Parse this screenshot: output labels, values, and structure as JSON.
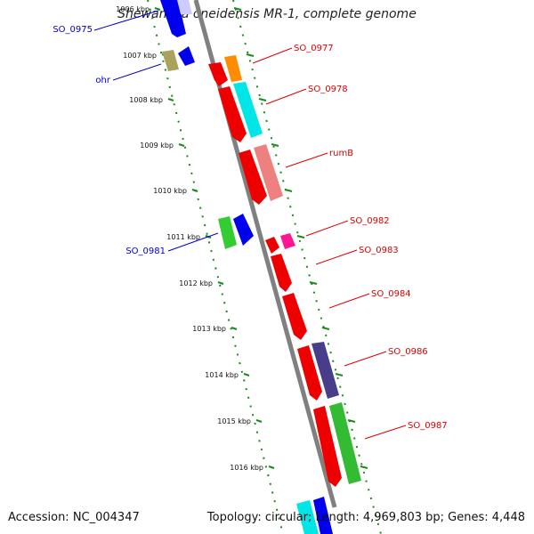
{
  "title": "Shewanella oneidensis MR-1, complete genome",
  "footer": {
    "accession": "Accession: NC_004347",
    "summary": "Topology: circular; Length: 4,969,803 bp; Genes: 4,448"
  },
  "ticks": [
    "1006 kbp",
    "1007 kbp",
    "1008 kbp",
    "1009 kbp",
    "1010 kbp",
    "1011 kbp",
    "1012 kbp",
    "1013 kbp",
    "1014 kbp",
    "1015 kbp",
    "1016 kbp"
  ],
  "gene_labels": [
    {
      "text": "SO_0975",
      "color": "#0000cc"
    },
    {
      "text": "ohr",
      "color": "#0000cc"
    },
    {
      "text": "SO_0977",
      "color": "#dd0000"
    },
    {
      "text": "SO_0978",
      "color": "#dd0000"
    },
    {
      "text": "rumB",
      "color": "#dd0000"
    },
    {
      "text": "SO_0981",
      "color": "#0000cc"
    },
    {
      "text": "SO_0982",
      "color": "#dd0000"
    },
    {
      "text": "SO_0983",
      "color": "#dd0000"
    },
    {
      "text": "SO_0984",
      "color": "#dd0000"
    },
    {
      "text": "SO_0986",
      "color": "#dd0000"
    },
    {
      "text": "SO_0987",
      "color": "#dd0000"
    }
  ],
  "colors": {
    "backbone": "#808080",
    "tick_dots": "#1a8a1a",
    "forward_cds": "#ee0000",
    "reverse_cds": "#0000ee"
  }
}
